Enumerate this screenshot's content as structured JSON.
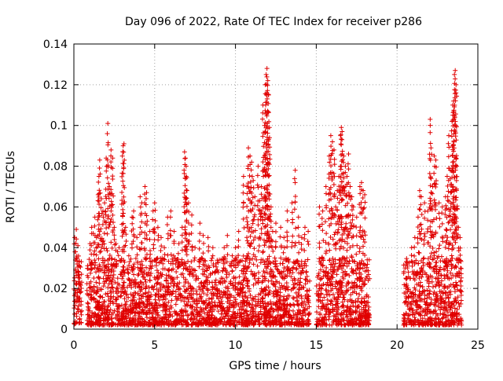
{
  "chart_data": {
    "type": "scatter",
    "title": "Day 096 of 2022, Rate Of TEC Index for receiver p286",
    "xlabel": "GPS time / hours",
    "ylabel": "ROTI / TECUs",
    "xlim": [
      0,
      25
    ],
    "ylim": [
      0,
      0.14
    ],
    "x_ticks": [
      0,
      5,
      10,
      15,
      20,
      25
    ],
    "x_tick_labels": [
      "0",
      "5",
      "10",
      "15",
      "20",
      "25"
    ],
    "y_ticks": [
      0,
      0.02,
      0.04,
      0.06,
      0.08,
      0.1,
      0.12,
      0.14
    ],
    "y_tick_labels": [
      "0",
      "0.02",
      "0.04",
      "0.06",
      "0.08",
      "0.1",
      "0.12",
      "0.14"
    ],
    "grid": true,
    "marker": "+",
    "marker_color": "#e00000",
    "series": [
      {
        "name": "ROTI",
        "points": [
          [
            0.05,
            0.045
          ],
          [
            0.1,
            0.038
          ],
          [
            0.15,
            0.049
          ],
          [
            0.2,
            0.032
          ],
          [
            0.25,
            0.041
          ],
          [
            0.3,
            0.028
          ],
          [
            0.35,
            0.025
          ],
          [
            0.4,
            0.018
          ],
          [
            1.0,
            0.042
          ],
          [
            1.1,
            0.05
          ],
          [
            1.2,
            0.047
          ],
          [
            1.3,
            0.055
          ],
          [
            1.4,
            0.045
          ],
          [
            1.5,
            0.066
          ],
          [
            1.55,
            0.075
          ],
          [
            1.6,
            0.083
          ],
          [
            1.7,
            0.064
          ],
          [
            1.8,
            0.058
          ],
          [
            1.9,
            0.062
          ],
          [
            2.0,
            0.084
          ],
          [
            2.1,
            0.101
          ],
          [
            2.2,
            0.07
          ],
          [
            2.3,
            0.088
          ],
          [
            2.4,
            0.084
          ],
          [
            2.5,
            0.05
          ],
          [
            2.6,
            0.042
          ],
          [
            2.7,
            0.038
          ],
          [
            2.8,
            0.04
          ],
          [
            3.0,
            0.085
          ],
          [
            3.05,
            0.09
          ],
          [
            3.1,
            0.091
          ],
          [
            3.2,
            0.05
          ],
          [
            3.4,
            0.036
          ],
          [
            3.6,
            0.055
          ],
          [
            3.7,
            0.058
          ],
          [
            3.9,
            0.045
          ],
          [
            4.1,
            0.065
          ],
          [
            4.2,
            0.062
          ],
          [
            4.4,
            0.07
          ],
          [
            4.5,
            0.067
          ],
          [
            4.7,
            0.048
          ],
          [
            4.9,
            0.058
          ],
          [
            5.0,
            0.062
          ],
          [
            5.2,
            0.05
          ],
          [
            5.4,
            0.045
          ],
          [
            5.6,
            0.04
          ],
          [
            5.8,
            0.055
          ],
          [
            6.0,
            0.058
          ],
          [
            6.2,
            0.048
          ],
          [
            6.5,
            0.042
          ],
          [
            6.7,
            0.05
          ],
          [
            6.85,
            0.087
          ],
          [
            6.9,
            0.084
          ],
          [
            6.95,
            0.08
          ],
          [
            7.0,
            0.068
          ],
          [
            7.1,
            0.062
          ],
          [
            7.3,
            0.056
          ],
          [
            7.5,
            0.04
          ],
          [
            7.8,
            0.052
          ],
          [
            8.0,
            0.046
          ],
          [
            8.3,
            0.045
          ],
          [
            8.6,
            0.04
          ],
          [
            9.0,
            0.034
          ],
          [
            9.3,
            0.04
          ],
          [
            9.5,
            0.046
          ],
          [
            9.8,
            0.036
          ],
          [
            10.0,
            0.04
          ],
          [
            10.2,
            0.048
          ],
          [
            10.5,
            0.075
          ],
          [
            10.7,
            0.07
          ],
          [
            10.8,
            0.089
          ],
          [
            10.9,
            0.085
          ],
          [
            11.0,
            0.082
          ],
          [
            11.1,
            0.073
          ],
          [
            11.2,
            0.065
          ],
          [
            11.4,
            0.08
          ],
          [
            11.5,
            0.063
          ],
          [
            11.6,
            0.07
          ],
          [
            11.7,
            0.11
          ],
          [
            11.8,
            0.1
          ],
          [
            11.85,
            0.12
          ],
          [
            11.9,
            0.125
          ],
          [
            11.95,
            0.128
          ],
          [
            12.0,
            0.122
          ],
          [
            12.05,
            0.115
          ],
          [
            12.1,
            0.099
          ],
          [
            12.2,
            0.06
          ],
          [
            12.3,
            0.048
          ],
          [
            12.5,
            0.052
          ],
          [
            12.8,
            0.05
          ],
          [
            13.0,
            0.045
          ],
          [
            13.2,
            0.058
          ],
          [
            13.5,
            0.062
          ],
          [
            13.7,
            0.078
          ],
          [
            13.9,
            0.055
          ],
          [
            14.1,
            0.045
          ],
          [
            14.3,
            0.05
          ],
          [
            14.5,
            0.048
          ],
          [
            15.2,
            0.06
          ],
          [
            15.4,
            0.058
          ],
          [
            15.6,
            0.07
          ],
          [
            15.8,
            0.085
          ],
          [
            15.9,
            0.095
          ],
          [
            16.0,
            0.092
          ],
          [
            16.1,
            0.088
          ],
          [
            16.2,
            0.06
          ],
          [
            16.3,
            0.068
          ],
          [
            16.4,
            0.075
          ],
          [
            16.5,
            0.095
          ],
          [
            16.55,
            0.099
          ],
          [
            16.6,
            0.097
          ],
          [
            16.7,
            0.085
          ],
          [
            16.8,
            0.08
          ],
          [
            16.9,
            0.075
          ],
          [
            17.0,
            0.086
          ],
          [
            17.1,
            0.07
          ],
          [
            17.2,
            0.065
          ],
          [
            17.3,
            0.06
          ],
          [
            17.5,
            0.055
          ],
          [
            17.7,
            0.07
          ],
          [
            17.8,
            0.072
          ],
          [
            17.9,
            0.068
          ],
          [
            18.0,
            0.066
          ],
          [
            20.5,
            0.03
          ],
          [
            20.7,
            0.028
          ],
          [
            20.9,
            0.04
          ],
          [
            21.1,
            0.045
          ],
          [
            21.3,
            0.055
          ],
          [
            21.4,
            0.068
          ],
          [
            21.5,
            0.065
          ],
          [
            21.7,
            0.062
          ],
          [
            21.9,
            0.058
          ],
          [
            22.05,
            0.103
          ],
          [
            22.1,
            0.089
          ],
          [
            22.2,
            0.07
          ],
          [
            22.3,
            0.085
          ],
          [
            22.4,
            0.083
          ],
          [
            22.6,
            0.062
          ],
          [
            22.8,
            0.06
          ],
          [
            23.0,
            0.065
          ],
          [
            23.1,
            0.075
          ],
          [
            23.2,
            0.095
          ],
          [
            23.3,
            0.078
          ],
          [
            23.4,
            0.102
          ],
          [
            23.45,
            0.11
          ],
          [
            23.5,
            0.112
          ],
          [
            23.55,
            0.125
          ],
          [
            23.6,
            0.127
          ],
          [
            23.65,
            0.12
          ],
          [
            23.7,
            0.08
          ],
          [
            23.8,
            0.05
          ],
          [
            23.9,
            0.045
          ]
        ]
      }
    ],
    "coverage_segments": [
      [
        0.0,
        0.5
      ],
      [
        0.8,
        14.6
      ],
      [
        15.0,
        18.3
      ],
      [
        20.4,
        24.0
      ]
    ],
    "baseline_range": [
      0.002,
      0.035
    ],
    "note": "Dense low-level cloud of points (roughly 0.002-0.035 TECU) covers each segment of GPS time; the list above gives the distinct higher values read off the plot."
  }
}
